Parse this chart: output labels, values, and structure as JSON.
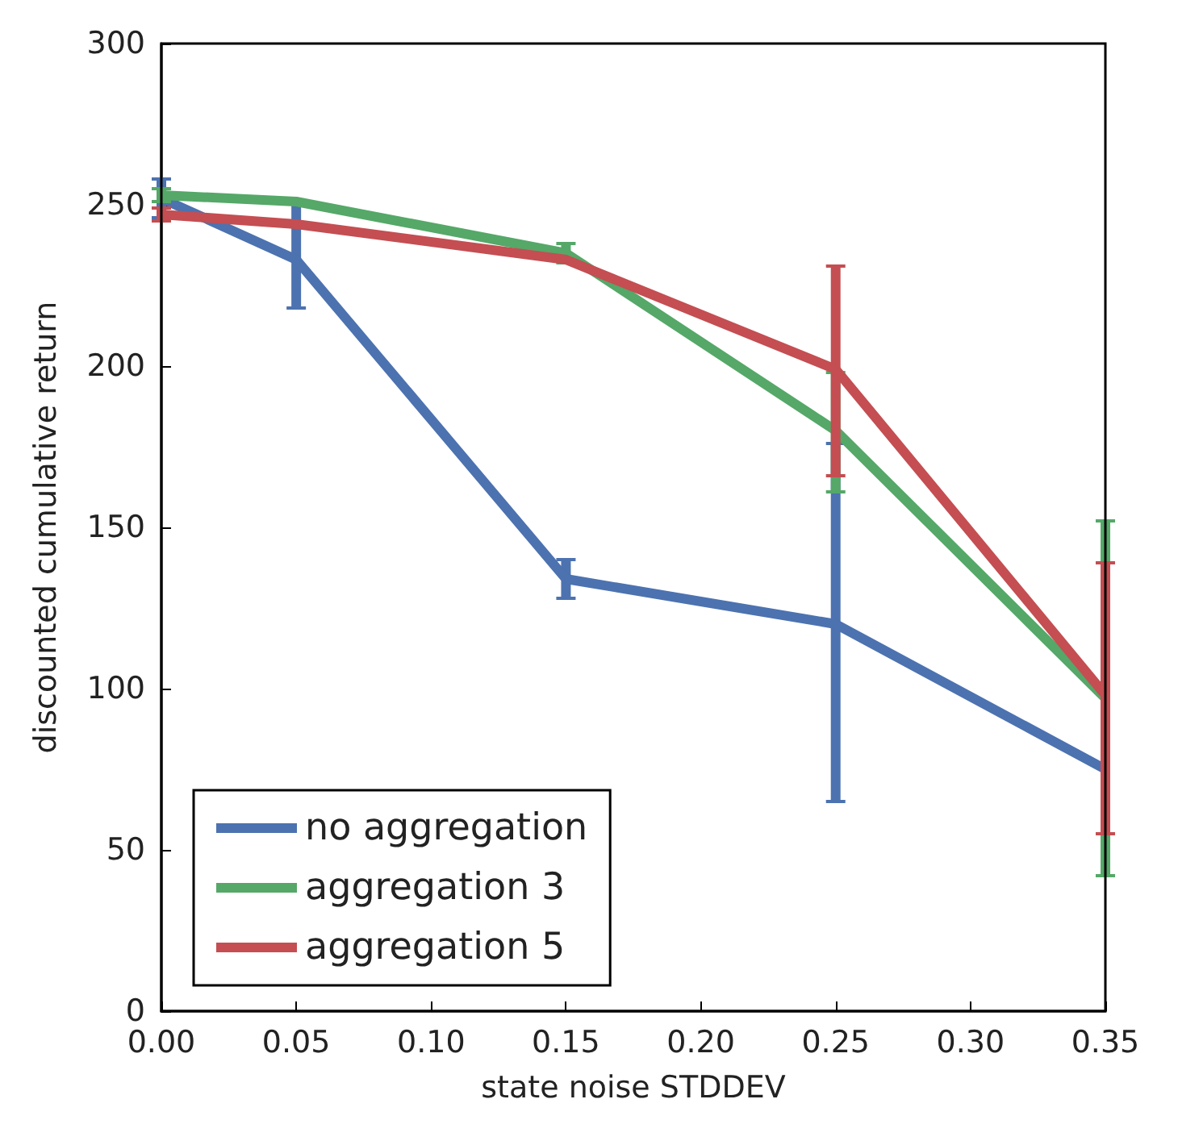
{
  "chart_data": {
    "type": "line",
    "xlabel": "state noise STDDEV",
    "ylabel": "discounted cumulative return",
    "x": [
      0.0,
      0.05,
      0.15,
      0.25,
      0.35
    ],
    "series": [
      {
        "name": "no aggregation",
        "color": "#4c72b0",
        "values": [
          252,
          233,
          134,
          120,
          75
        ],
        "errors": [
          [
            246,
            258
          ],
          [
            218,
            251
          ],
          [
            128,
            140
          ],
          [
            65,
            176
          ],
          null
        ]
      },
      {
        "name": "aggregation 3",
        "color": "#55a868",
        "values": [
          253,
          251,
          235,
          180,
          97
        ],
        "errors": [
          [
            251,
            255
          ],
          null,
          [
            232,
            238
          ],
          [
            161,
            198
          ],
          [
            42,
            152
          ]
        ]
      },
      {
        "name": "aggregation 5",
        "color": "#c44e52",
        "values": [
          247,
          244,
          233,
          199,
          98
        ],
        "errors": [
          [
            245,
            249
          ],
          null,
          null,
          [
            166,
            231
          ],
          [
            55,
            139
          ]
        ]
      }
    ],
    "xlim": [
      0,
      0.35
    ],
    "xticks": [
      {
        "value": 0,
        "label": "0.00"
      },
      {
        "value": 0.05,
        "label": "0.05"
      },
      {
        "value": 0.1,
        "label": "0.10"
      },
      {
        "value": 0.15,
        "label": "0.15"
      },
      {
        "value": 0.2,
        "label": "0.20"
      },
      {
        "value": 0.25,
        "label": "0.25"
      },
      {
        "value": 0.3,
        "label": "0.30"
      },
      {
        "value": 0.35,
        "label": "0.35"
      }
    ],
    "ylim": [
      0,
      300
    ],
    "yticks": [
      0,
      50,
      100,
      150,
      200,
      250,
      300
    ],
    "legend": "bottom left",
    "grid": false,
    "marker": "none",
    "line_style": "solid"
  }
}
